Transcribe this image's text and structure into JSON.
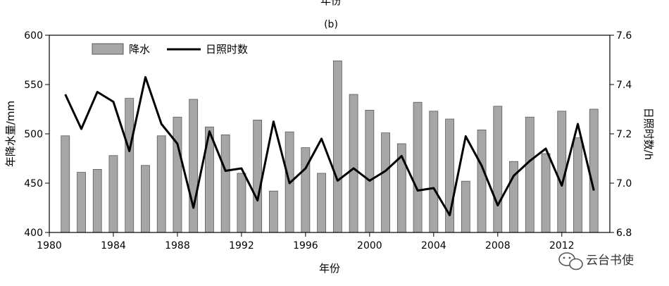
{
  "top_cut_label": "年份",
  "watermark": {
    "text": "云台书使",
    "icon": "wechat-icon"
  },
  "chart_data": {
    "type": "bar+line",
    "panel_label": "(b)",
    "xlabel": "年份",
    "ylabel_left": "年降水量/mm",
    "ylabel_right": "日照时数/h",
    "x_ticks": [
      1980,
      1984,
      1988,
      1992,
      1996,
      2000,
      2004,
      2008,
      2012
    ],
    "x_range": [
      1980,
      2015
    ],
    "y_left_range": [
      400,
      600
    ],
    "y_left_ticks": [
      400,
      450,
      500,
      550,
      600
    ],
    "y_right_range": [
      6.8,
      7.6
    ],
    "y_right_ticks": [
      "6.8",
      "7.0",
      "7.2",
      "7.4",
      "7.6"
    ],
    "legend": {
      "position": "top-left",
      "bar_label": "降水",
      "line_label": "日照时数"
    },
    "colors": {
      "bar_fill": "#a6a6a6",
      "bar_stroke": "#5a5a5a",
      "line": "#000000"
    },
    "years": [
      1981,
      1982,
      1983,
      1984,
      1985,
      1986,
      1987,
      1988,
      1989,
      1990,
      1991,
      1992,
      1993,
      1994,
      1995,
      1996,
      1997,
      1998,
      1999,
      2000,
      2001,
      2002,
      2003,
      2004,
      2005,
      2006,
      2007,
      2008,
      2009,
      2010,
      2011,
      2012,
      2013,
      2014
    ],
    "series": [
      {
        "name": "降水",
        "type": "bar",
        "axis": "left",
        "values": [
          498,
          461,
          464,
          478,
          536,
          468,
          498,
          517,
          535,
          507,
          499,
          460,
          514,
          442,
          502,
          486,
          460,
          574,
          540,
          524,
          501,
          490,
          532,
          523,
          515,
          452,
          504,
          528,
          472,
          517,
          480,
          523,
          496,
          525
        ]
      },
      {
        "name": "日照时数",
        "type": "line",
        "axis": "right",
        "values": [
          7.36,
          7.22,
          7.37,
          7.33,
          7.13,
          7.43,
          7.24,
          7.16,
          6.9,
          7.21,
          7.05,
          7.06,
          6.93,
          7.25,
          7.0,
          7.06,
          7.18,
          7.01,
          7.06,
          7.01,
          7.05,
          7.11,
          6.97,
          6.98,
          6.87,
          7.19,
          7.07,
          6.91,
          7.03,
          7.09,
          7.14,
          6.99,
          7.24,
          6.97
        ]
      }
    ]
  }
}
